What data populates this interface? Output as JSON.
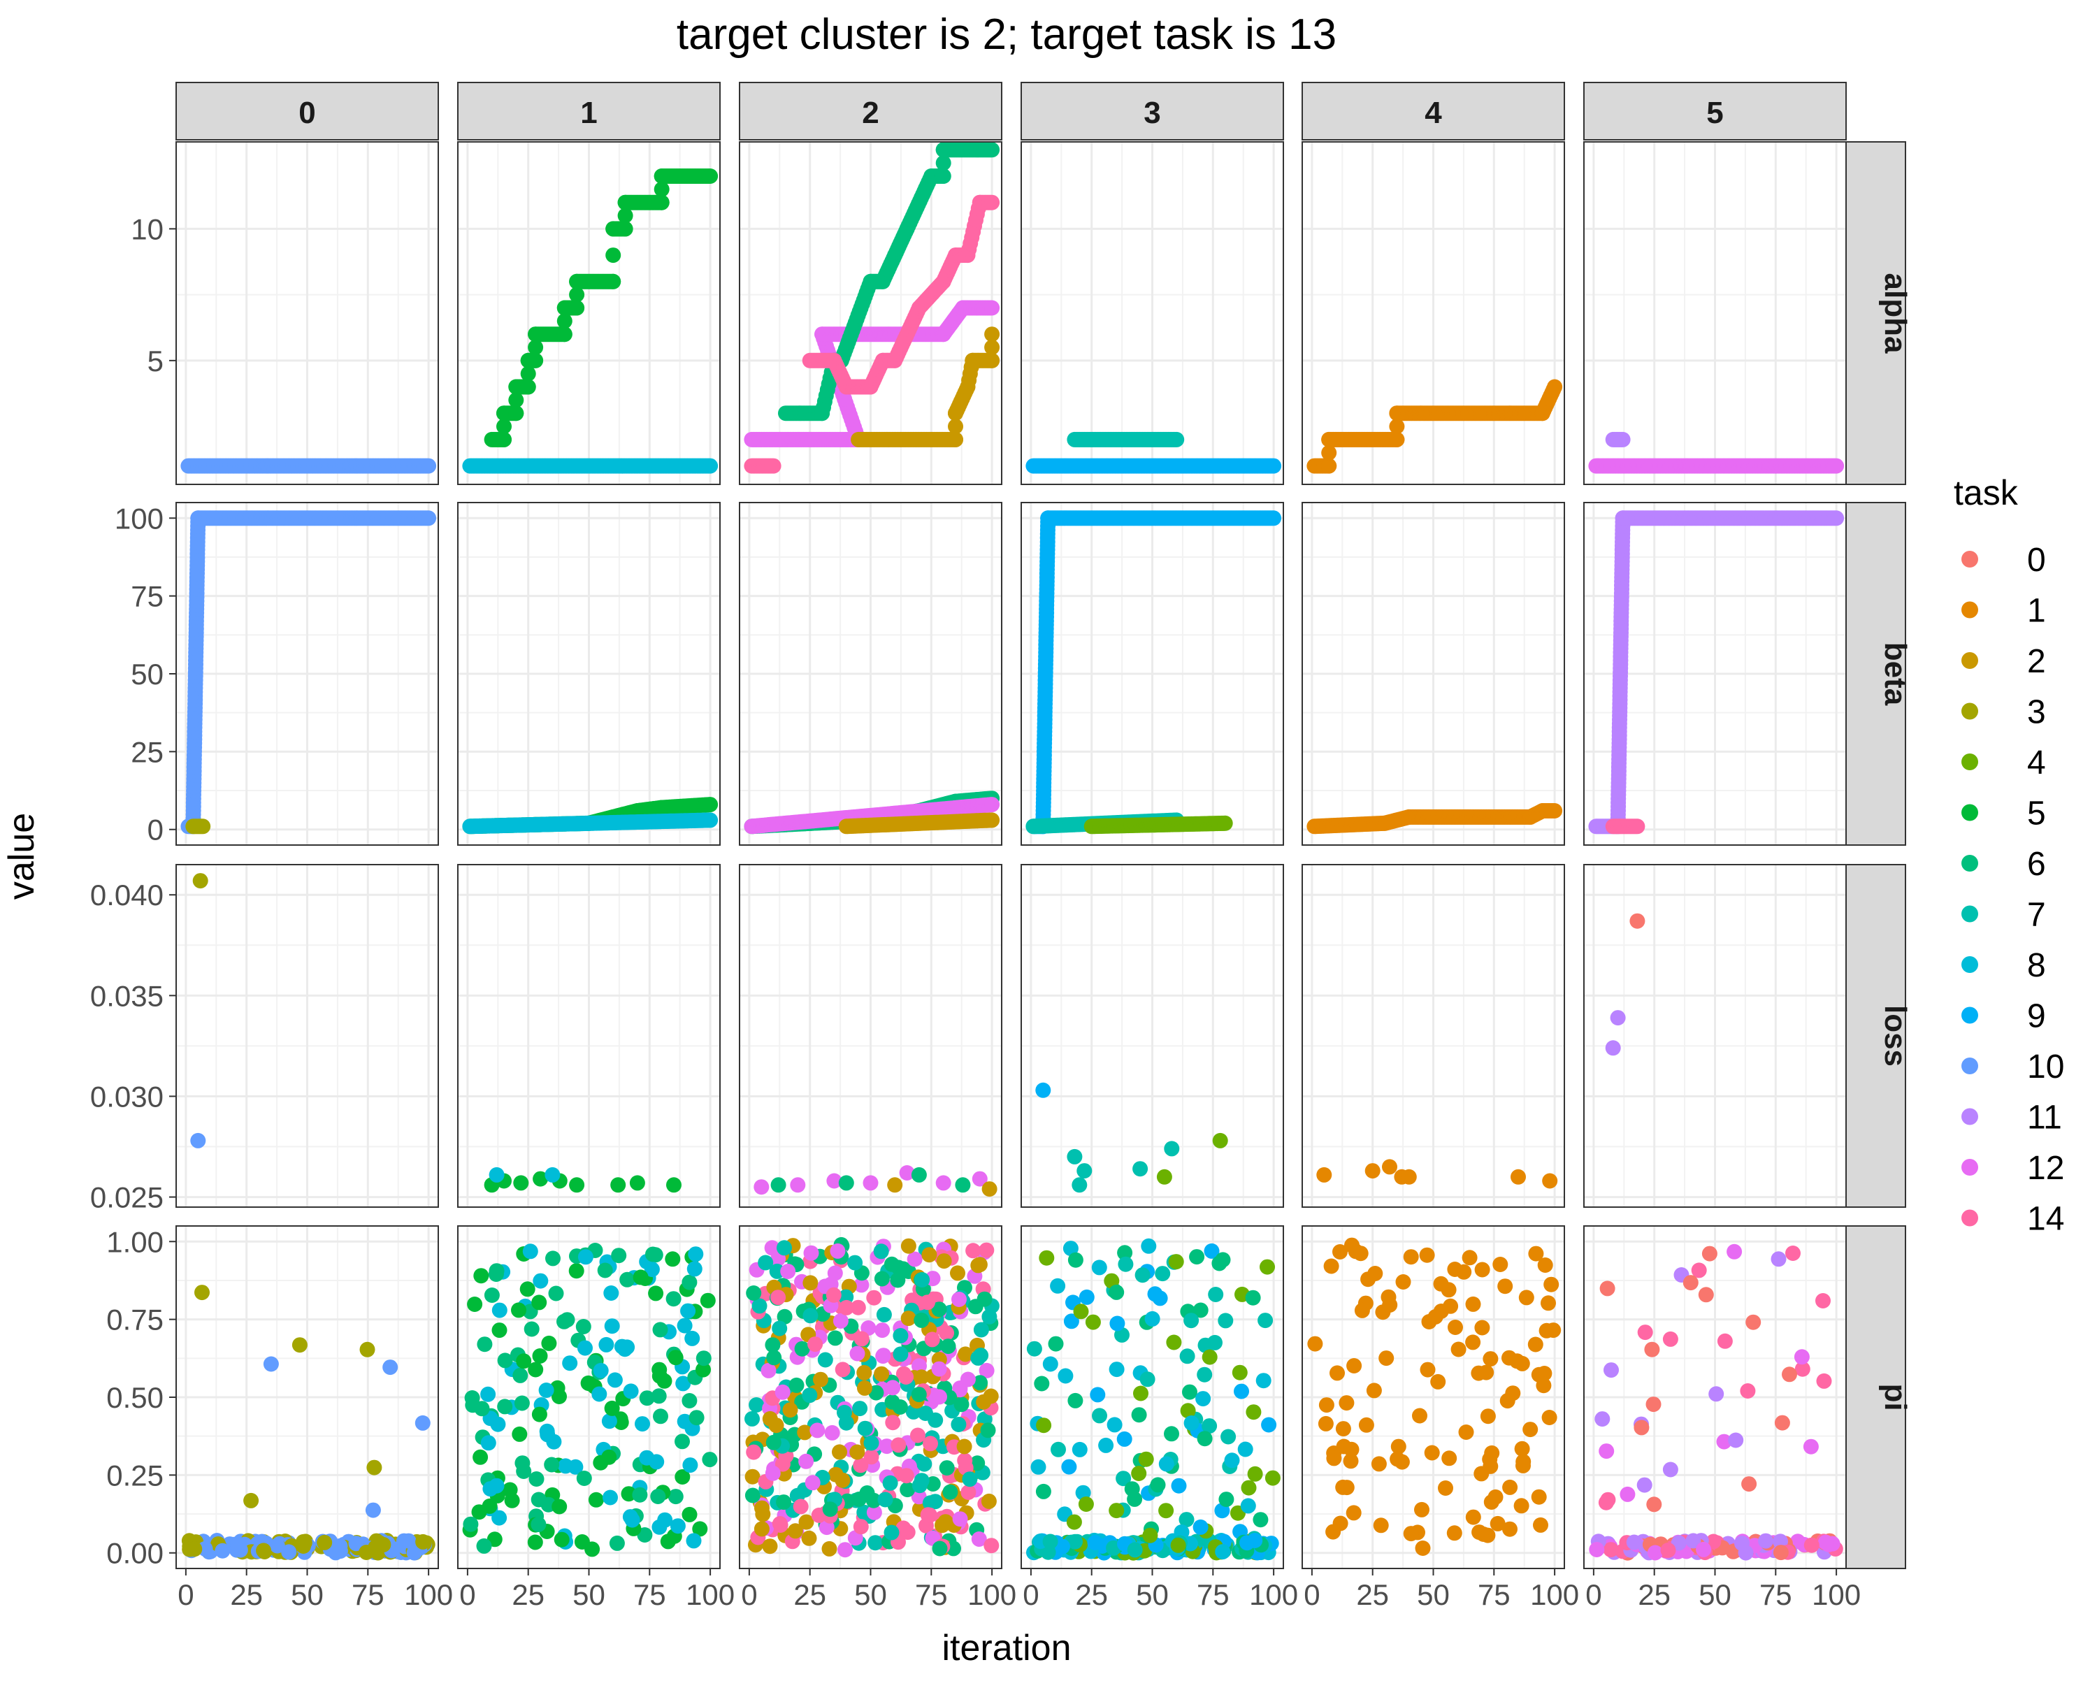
{
  "chart_data": {
    "type": "scatter",
    "title": "target cluster is 2; target task is 13",
    "xlabel": "iteration",
    "ylabel": "value",
    "facet_columns": [
      "0",
      "1",
      "2",
      "3",
      "4",
      "5"
    ],
    "facet_rows": [
      "alpha",
      "beta",
      "loss",
      "pi"
    ],
    "x_ticks": [
      0,
      25,
      50,
      75,
      100
    ],
    "x_tick_labels": [
      "0",
      "25",
      "50",
      "75",
      "100"
    ],
    "xlim": [
      -4,
      104
    ],
    "y_axes": {
      "alpha": {
        "ylim": [
          0.3,
          13.3
        ],
        "ticks": [
          5,
          10
        ],
        "tick_labels": [
          "5",
          "10"
        ]
      },
      "beta": {
        "ylim": [
          -5,
          105
        ],
        "ticks": [
          0,
          25,
          50,
          75,
          100
        ],
        "tick_labels": [
          "0",
          "25",
          "50",
          "75",
          "100"
        ]
      },
      "loss": {
        "ylim": [
          0.0245,
          0.0415
        ],
        "ticks": [
          0.025,
          0.03,
          0.035,
          0.04
        ],
        "tick_labels": [
          "0.025",
          "0.030",
          "0.035",
          "0.040"
        ]
      },
      "pi": {
        "ylim": [
          -0.05,
          1.05
        ],
        "ticks": [
          0,
          0.25,
          0.5,
          0.75,
          1.0
        ],
        "tick_labels": [
          "0.00",
          "0.25",
          "0.50",
          "0.75",
          "1.00"
        ]
      }
    },
    "legend": {
      "title": "task",
      "position": "right",
      "entries": [
        {
          "name": "0",
          "color": "#F8766D"
        },
        {
          "name": "1",
          "color": "#E58700"
        },
        {
          "name": "2",
          "color": "#C99800"
        },
        {
          "name": "3",
          "color": "#A3A500"
        },
        {
          "name": "4",
          "color": "#6BB100"
        },
        {
          "name": "5",
          "color": "#00BA38"
        },
        {
          "name": "6",
          "color": "#00BF7D"
        },
        {
          "name": "7",
          "color": "#00C0AF"
        },
        {
          "name": "8",
          "color": "#00BCD8"
        },
        {
          "name": "9",
          "color": "#00B0F6"
        },
        {
          "name": "10",
          "color": "#619CFF"
        },
        {
          "name": "11",
          "color": "#B983FF"
        },
        {
          "name": "12",
          "color": "#E76BF3"
        },
        {
          "name": "14",
          "color": "#FF67A4"
        }
      ]
    },
    "grid": true,
    "alpha_series": [
      {
        "col": "0",
        "task": "10",
        "points": [
          [
            1,
            1
          ],
          [
            100,
            1
          ]
        ]
      },
      {
        "col": "1",
        "task": "8",
        "points": [
          [
            1,
            1
          ],
          [
            100,
            1
          ]
        ]
      },
      {
        "col": "1",
        "task": "5",
        "points": [
          [
            10,
            2
          ],
          [
            15,
            2
          ],
          [
            15,
            3
          ],
          [
            20,
            3
          ],
          [
            20,
            4
          ],
          [
            25,
            4
          ],
          [
            25,
            5
          ],
          [
            28,
            5
          ],
          [
            28,
            6
          ],
          [
            40,
            6
          ],
          [
            40,
            7
          ],
          [
            45,
            7
          ],
          [
            45,
            8
          ],
          [
            60,
            8
          ],
          [
            60,
            10
          ],
          [
            65,
            10
          ],
          [
            65,
            11
          ],
          [
            80,
            11
          ],
          [
            80,
            12
          ],
          [
            100,
            12
          ]
        ]
      },
      {
        "col": "2",
        "task": "14",
        "points": [
          [
            1,
            1
          ],
          [
            10,
            1
          ]
        ]
      },
      {
        "col": "2",
        "task": "12",
        "points": [
          [
            1,
            2
          ],
          [
            45,
            2
          ],
          [
            30,
            6
          ],
          [
            80,
            6
          ],
          [
            88,
            7
          ],
          [
            100,
            7
          ]
        ]
      },
      {
        "col": "2",
        "task": "2",
        "points": [
          [
            45,
            2
          ],
          [
            85,
            2
          ],
          [
            85,
            3
          ],
          [
            90,
            4
          ],
          [
            92,
            5
          ],
          [
            100,
            5
          ],
          [
            100,
            6
          ]
        ]
      },
      {
        "col": "2",
        "task": "6",
        "points": [
          [
            15,
            3
          ],
          [
            30,
            3
          ],
          [
            35,
            5
          ],
          [
            38,
            5
          ],
          [
            50,
            8
          ],
          [
            55,
            8
          ],
          [
            60,
            9
          ],
          [
            65,
            10
          ],
          [
            75,
            12
          ],
          [
            80,
            12
          ],
          [
            80,
            13
          ],
          [
            100,
            13
          ]
        ]
      },
      {
        "col": "2",
        "task": "14",
        "points": [
          [
            25,
            5
          ],
          [
            35,
            5
          ],
          [
            40,
            4
          ],
          [
            50,
            4
          ],
          [
            55,
            5
          ],
          [
            60,
            5
          ],
          [
            70,
            7
          ],
          [
            80,
            8
          ],
          [
            85,
            9
          ],
          [
            90,
            9
          ],
          [
            95,
            11
          ],
          [
            100,
            11
          ]
        ]
      },
      {
        "col": "3",
        "task": "7",
        "points": [
          [
            18,
            2
          ],
          [
            60,
            2
          ]
        ]
      },
      {
        "col": "3",
        "task": "9",
        "points": [
          [
            1,
            1
          ],
          [
            100,
            1
          ]
        ]
      },
      {
        "col": "4",
        "task": "1",
        "points": [
          [
            1,
            1
          ],
          [
            7,
            1
          ],
          [
            7,
            2
          ],
          [
            35,
            2
          ],
          [
            35,
            3
          ],
          [
            95,
            3
          ],
          [
            100,
            4
          ]
        ]
      },
      {
        "col": "5",
        "task": "11",
        "points": [
          [
            8,
            2
          ],
          [
            12,
            2
          ]
        ]
      },
      {
        "col": "5",
        "task": "12",
        "points": [
          [
            1,
            1
          ],
          [
            100,
            1
          ]
        ]
      }
    ],
    "beta_series": [
      {
        "col": "0",
        "task": "10",
        "points": [
          [
            1,
            1
          ],
          [
            3,
            1
          ],
          [
            5,
            100
          ],
          [
            100,
            100
          ]
        ]
      },
      {
        "col": "0",
        "task": "3",
        "points": [
          [
            3,
            1
          ],
          [
            7,
            1
          ]
        ]
      },
      {
        "col": "1",
        "task": "5",
        "points": [
          [
            1,
            1
          ],
          [
            50,
            2
          ],
          [
            60,
            4
          ],
          [
            70,
            6
          ],
          [
            80,
            7
          ],
          [
            100,
            8
          ]
        ]
      },
      {
        "col": "1",
        "task": "8",
        "points": [
          [
            1,
            1
          ],
          [
            100,
            3
          ]
        ]
      },
      {
        "col": "2",
        "task": "6",
        "points": [
          [
            1,
            1
          ],
          [
            50,
            3
          ],
          [
            70,
            6
          ],
          [
            85,
            9
          ],
          [
            100,
            10
          ]
        ]
      },
      {
        "col": "2",
        "task": "12",
        "points": [
          [
            1,
            1
          ],
          [
            100,
            8
          ]
        ]
      },
      {
        "col": "2",
        "task": "2",
        "points": [
          [
            40,
            1
          ],
          [
            100,
            3
          ]
        ]
      },
      {
        "col": "3",
        "task": "9",
        "points": [
          [
            1,
            1
          ],
          [
            5,
            1
          ],
          [
            7,
            100
          ],
          [
            100,
            100
          ]
        ]
      },
      {
        "col": "3",
        "task": "7",
        "points": [
          [
            1,
            1
          ],
          [
            60,
            3
          ]
        ]
      },
      {
        "col": "3",
        "task": "4",
        "points": [
          [
            25,
            1
          ],
          [
            80,
            2
          ]
        ]
      },
      {
        "col": "4",
        "task": "1",
        "points": [
          [
            1,
            1
          ],
          [
            30,
            2
          ],
          [
            40,
            4
          ],
          [
            90,
            4
          ],
          [
            95,
            6
          ],
          [
            100,
            6
          ]
        ]
      },
      {
        "col": "5",
        "task": "11",
        "points": [
          [
            1,
            1
          ],
          [
            10,
            1
          ],
          [
            12,
            100
          ],
          [
            100,
            100
          ]
        ]
      },
      {
        "col": "5",
        "task": "14",
        "points": [
          [
            8,
            1
          ],
          [
            18,
            1
          ]
        ]
      }
    ],
    "loss_points": [
      {
        "col": "0",
        "task": "3",
        "points": [
          [
            6,
            0.0407
          ]
        ]
      },
      {
        "col": "0",
        "task": "10",
        "points": [
          [
            5,
            0.0278
          ]
        ]
      },
      {
        "col": "1",
        "task": "5",
        "points": [
          [
            10,
            0.0256
          ],
          [
            15,
            0.0258
          ],
          [
            22,
            0.0257
          ],
          [
            30,
            0.0259
          ],
          [
            38,
            0.0258
          ],
          [
            45,
            0.0256
          ],
          [
            62,
            0.0256
          ],
          [
            70,
            0.0257
          ],
          [
            85,
            0.0256
          ]
        ]
      },
      {
        "col": "1",
        "task": "8",
        "points": [
          [
            12,
            0.0261
          ],
          [
            35,
            0.0261
          ]
        ]
      },
      {
        "col": "2",
        "task": "12",
        "points": [
          [
            5,
            0.0255
          ],
          [
            20,
            0.0256
          ],
          [
            35,
            0.0258
          ],
          [
            50,
            0.0257
          ],
          [
            65,
            0.0262
          ],
          [
            80,
            0.0257
          ],
          [
            95,
            0.0259
          ]
        ]
      },
      {
        "col": "2",
        "task": "6",
        "points": [
          [
            12,
            0.0256
          ],
          [
            40,
            0.0257
          ],
          [
            70,
            0.0261
          ],
          [
            88,
            0.0256
          ]
        ]
      },
      {
        "col": "2",
        "task": "2",
        "points": [
          [
            60,
            0.0256
          ],
          [
            99,
            0.0254
          ]
        ]
      },
      {
        "col": "3",
        "task": "9",
        "points": [
          [
            5,
            0.0303
          ]
        ]
      },
      {
        "col": "3",
        "task": "7",
        "points": [
          [
            18,
            0.027
          ],
          [
            22,
            0.0263
          ],
          [
            20,
            0.0256
          ],
          [
            45,
            0.0264
          ],
          [
            58,
            0.0274
          ]
        ]
      },
      {
        "col": "3",
        "task": "4",
        "points": [
          [
            55,
            0.026
          ],
          [
            78,
            0.0278
          ]
        ]
      },
      {
        "col": "4",
        "task": "1",
        "points": [
          [
            5,
            0.0261
          ],
          [
            25,
            0.0263
          ],
          [
            32,
            0.0265
          ],
          [
            37,
            0.026
          ],
          [
            40,
            0.026
          ],
          [
            85,
            0.026
          ],
          [
            98,
            0.0258
          ]
        ]
      },
      {
        "col": "5",
        "task": "0",
        "points": [
          [
            18,
            0.0387
          ]
        ]
      },
      {
        "col": "5",
        "task": "11",
        "points": [
          [
            8,
            0.0324
          ],
          [
            10,
            0.0339
          ]
        ]
      }
    ],
    "pi_scatter": [
      {
        "col": "0",
        "tasks": [
          "10",
          "3"
        ],
        "n": 180,
        "high_frac": 0.06
      },
      {
        "col": "1",
        "tasks": [
          "5",
          "8",
          "6"
        ],
        "n": 200,
        "high_frac": 1
      },
      {
        "col": "2",
        "tasks": [
          "6",
          "12",
          "2",
          "14",
          "7"
        ],
        "n": 460,
        "high_frac": 1
      },
      {
        "col": "3",
        "tasks": [
          "4",
          "7",
          "9",
          "6",
          "8"
        ],
        "n": 260,
        "high_frac": 0.5
      },
      {
        "col": "4",
        "tasks": [
          "1"
        ],
        "n": 110,
        "high_frac": 1
      },
      {
        "col": "5",
        "tasks": [
          "12",
          "0",
          "11",
          "14"
        ],
        "n": 140,
        "high_frac": 0.2
      }
    ]
  }
}
